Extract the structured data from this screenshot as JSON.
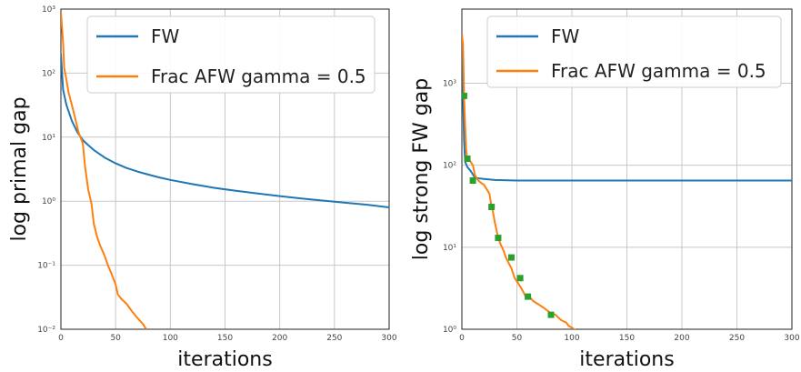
{
  "chart_data": [
    {
      "type": "line",
      "xlabel": "iterations",
      "ylabel": "log primal gap",
      "xlim": [
        0,
        300
      ],
      "ylim": [
        0.01,
        1000
      ],
      "yscale": "log",
      "x_ticks": [
        "0",
        "50",
        "100",
        "150",
        "200",
        "250",
        "300"
      ],
      "y_ticks": [
        "10⁻²",
        "10⁻¹",
        "10⁰",
        "10¹",
        "10²",
        "10³"
      ],
      "grid": true,
      "legend_position": "top-right",
      "series": [
        {
          "name": "FW",
          "color": "#1f77b4",
          "x": [
            0,
            2,
            5,
            10,
            15,
            20,
            25,
            30,
            40,
            50,
            60,
            70,
            80,
            90,
            100,
            120,
            140,
            160,
            180,
            200,
            220,
            250,
            280,
            300
          ],
          "y": [
            200,
            55,
            32,
            18,
            12,
            9,
            7.5,
            6.3,
            4.8,
            3.9,
            3.3,
            2.9,
            2.6,
            2.35,
            2.15,
            1.85,
            1.62,
            1.45,
            1.32,
            1.2,
            1.1,
            0.98,
            0.88,
            0.8
          ]
        },
        {
          "name": "Frac AFW gamma = 0.5",
          "color": "#ff7f0e",
          "x": [
            0,
            2,
            3,
            5,
            7,
            10,
            13,
            16,
            20,
            22,
            25,
            28,
            30,
            33,
            36,
            40,
            43,
            46,
            50,
            52,
            55,
            60,
            65,
            70,
            75,
            78
          ],
          "y": [
            900,
            300,
            120,
            80,
            50,
            32,
            20,
            12,
            8,
            3.5,
            1.5,
            0.9,
            0.45,
            0.28,
            0.2,
            0.14,
            0.1,
            0.075,
            0.05,
            0.035,
            0.03,
            0.025,
            0.019,
            0.015,
            0.012,
            0.01
          ]
        }
      ]
    },
    {
      "type": "line",
      "xlabel": "iterations",
      "ylabel": "log strong FW gap",
      "xlim": [
        0,
        300
      ],
      "ylim": [
        1,
        8000
      ],
      "yscale": "log",
      "x_ticks": [
        "0",
        "50",
        "100",
        "150",
        "200",
        "250",
        "300"
      ],
      "y_ticks": [
        "10⁰",
        "10¹",
        "10²",
        "10³"
      ],
      "grid": true,
      "legend_position": "top-right",
      "series": [
        {
          "name": "FW",
          "color": "#1f77b4",
          "x": [
            0,
            1,
            2,
            3,
            5,
            8,
            12,
            20,
            30,
            50,
            80,
            120,
            160,
            200,
            250,
            300
          ],
          "y": [
            4000,
            800,
            200,
            110,
            95,
            85,
            70,
            68,
            66,
            65,
            65,
            65,
            65,
            65,
            65,
            65
          ]
        },
        {
          "name": "Frac AFW gamma = 0.5",
          "color": "#ff7f0e",
          "x": [
            0,
            1,
            2,
            3,
            4,
            5,
            8,
            10,
            12,
            15,
            18,
            20,
            23,
            25,
            27,
            28,
            30,
            33,
            35,
            38,
            40,
            45,
            48,
            52,
            55,
            58,
            60,
            65,
            70,
            75,
            80,
            85,
            90,
            95,
            97,
            100,
            102,
            104
          ],
          "y": [
            4000,
            3000,
            700,
            300,
            150,
            120,
            110,
            100,
            75,
            65,
            60,
            58,
            50,
            45,
            31,
            28,
            20,
            13,
            11,
            9,
            7.5,
            5.5,
            4.2,
            3.5,
            3,
            2.5,
            2.6,
            2.2,
            2.0,
            1.8,
            1.6,
            1.5,
            1.3,
            1.2,
            1.1,
            1.05,
            1.0,
            0.95
          ]
        }
      ],
      "markers": {
        "color": "#2ca02c",
        "x": [
          2,
          5,
          10,
          27,
          33,
          45,
          53,
          60,
          81
        ],
        "y": [
          700,
          120,
          65,
          31,
          13,
          7.5,
          4.2,
          2.5,
          1.5
        ]
      }
    }
  ]
}
